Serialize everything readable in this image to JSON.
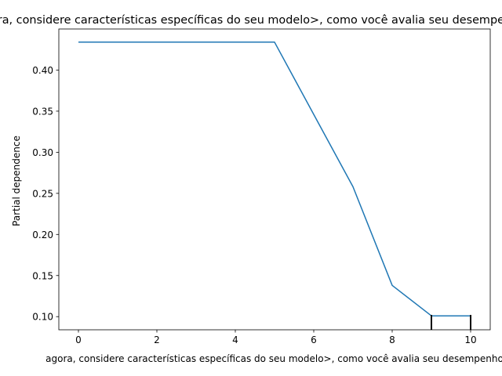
{
  "chart_data": {
    "type": "line",
    "title": "agora, considere características específicas do seu modelo>, como você avalia seu desempenho",
    "xlabel": "agora, considere características específicas do seu modelo>, como você avalia seu desempenho",
    "ylabel": "Partial dependence",
    "x": [
      0,
      5,
      6,
      7,
      8,
      9,
      10
    ],
    "y": [
      0.434,
      0.434,
      0.346,
      0.258,
      0.138,
      0.101,
      0.101
    ],
    "xlim": [
      -0.5,
      10.5
    ],
    "ylim": [
      0.084,
      0.45
    ],
    "xticks": [
      0,
      2,
      4,
      6,
      8,
      10
    ],
    "xtick_labels": [
      "0",
      "2",
      "4",
      "6",
      "8",
      "10"
    ],
    "yticks": [
      0.1,
      0.15,
      0.2,
      0.25,
      0.3,
      0.35,
      0.4
    ],
    "ytick_labels": [
      "0.10",
      "0.15",
      "0.20",
      "0.25",
      "0.30",
      "0.35",
      "0.40"
    ],
    "rug": [
      9,
      10
    ],
    "grid": false,
    "line_color": "#1f77b4"
  }
}
